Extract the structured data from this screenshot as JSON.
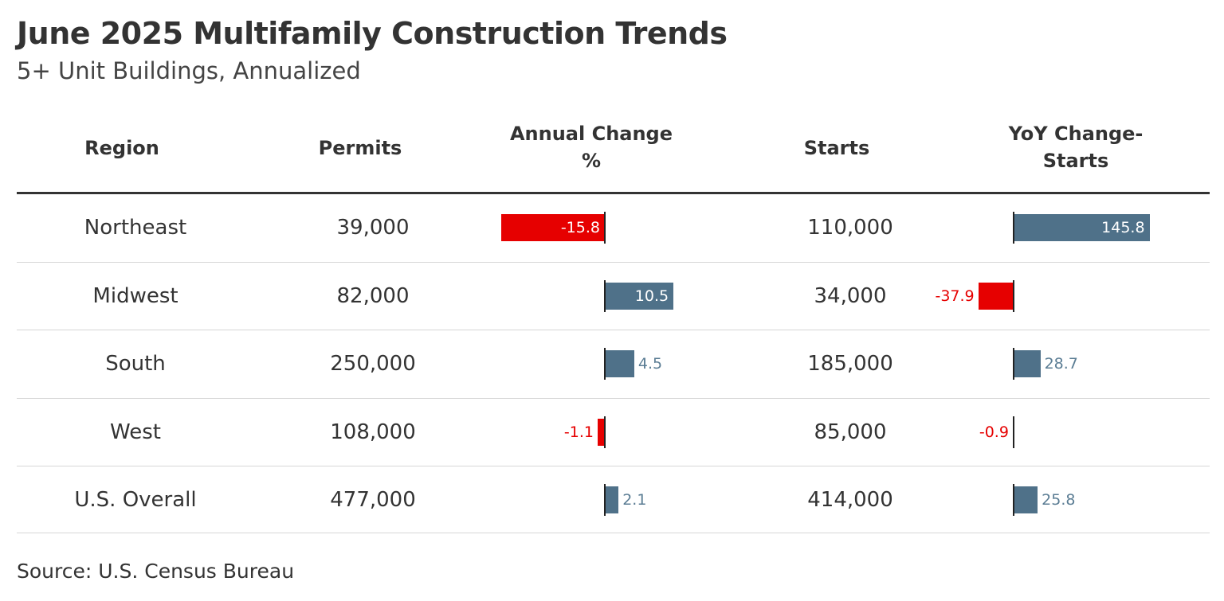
{
  "title": "June 2025 Multifamily Construction Trends",
  "subtitle": "5+ Unit Buildings, Annualized",
  "source": "Source: U.S. Census Bureau",
  "colors": {
    "positive": "#4f7189",
    "negative": "#e60000",
    "text": "#333333"
  },
  "chart_data": {
    "type": "table",
    "columns": [
      "Region",
      "Permits",
      "Annual Change %",
      "Starts",
      "YoY Change-Starts"
    ],
    "rows": [
      {
        "region": "Northeast",
        "permits": "39,000",
        "annual_change": -15.8,
        "annual_change_label": "-15.8",
        "starts": "110,000",
        "yoy_change": 145.8,
        "yoy_change_label": "145.8"
      },
      {
        "region": "Midwest",
        "permits": "82,000",
        "annual_change": 10.5,
        "annual_change_label": "10.5",
        "starts": "34,000",
        "yoy_change": -37.9,
        "yoy_change_label": "-37.9"
      },
      {
        "region": "South",
        "permits": "250,000",
        "annual_change": 4.5,
        "annual_change_label": "4.5",
        "starts": "185,000",
        "yoy_change": 28.7,
        "yoy_change_label": "28.7"
      },
      {
        "region": "West",
        "permits": "108,000",
        "annual_change": -1.1,
        "annual_change_label": "-1.1",
        "starts": "85,000",
        "yoy_change": -0.9,
        "yoy_change_label": "-0.9"
      },
      {
        "region": "U.S. Overall",
        "permits": "477,000",
        "annual_change": 2.1,
        "annual_change_label": "2.1",
        "starts": "414,000",
        "yoy_change": 25.8,
        "yoy_change_label": "25.8"
      }
    ]
  }
}
